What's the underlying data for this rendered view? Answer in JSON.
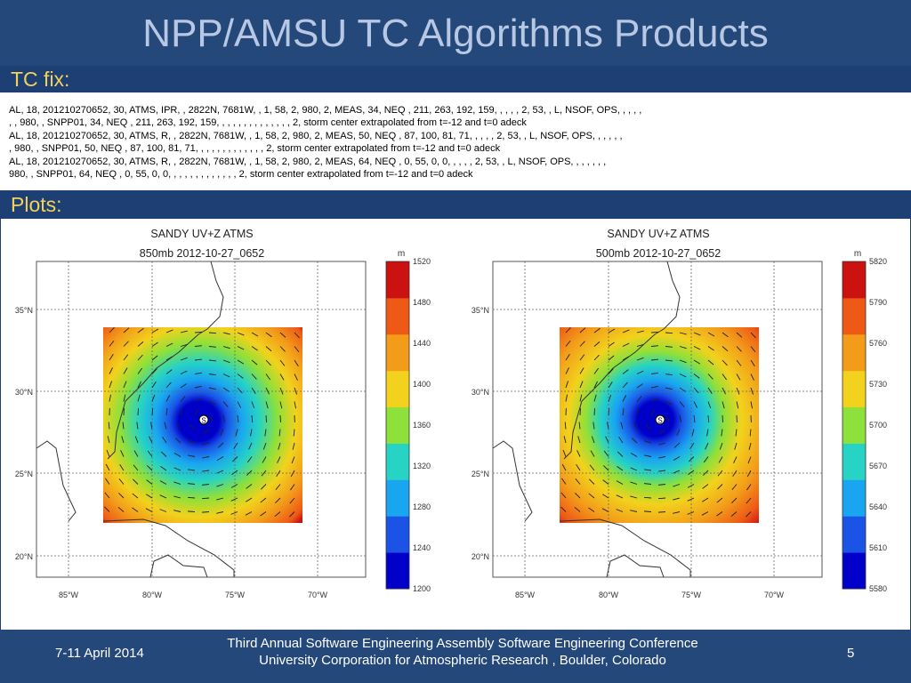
{
  "slide": {
    "title": "NPP/AMSU TC Algorithms Products",
    "tc_fix_label": "TC fix:",
    "plots_label": "Plots:",
    "tc_fix_lines": [
      "AL, 18, 201210270652,  30, ATMS,        IPR,  , 2822N,  7681W,      , 1,  58, 2,  980, 2, MEAS,  34, NEQ ,  211,  263,  192,  159,  ,  ,  ,  , 2,  53,    , L,  NSOF, OPS,  ,    ,        ,   ,",
      ",     ,  980,     , SNPP01,  34, NEQ ,  211,  263,  192,  159,     ,     ,      ,      ,   ,  ,  ,  ,  ,  ,  ,  ,  , 2, storm center extrapolated from t=-12 and t=0 adeck",
      "AL, 18, 201210270652,  30, ATMS,         R,  , 2822N,  7681W,      , 1,  58, 2,  980, 2, MEAS,  50, NEQ ,   87,  100,   81,   71,  ,  ,  ,  , 2,  53,    , L,  NSOF, OPS,  ,    ,      ,   ,     ,",
      "  ,  980,     , SNPP01,  50, NEQ ,   87,  100,   81,   71,     ,     ,      ,   ,  ,  ,  ,  ,  ,  ,  ,  , 2, storm center extrapolated from t=-12 and t=0 adeck",
      "AL, 18, 201210270652,  30, ATMS,         R,  , 2822N,  7681W,      , 1,  58, 2,  980, 2, MEAS,  64, NEQ ,    0,   55,    0,    0,  ,  ,  ,  , 2,  53,    , L,  NSOF, OPS,  ,    ,       ,   ,     ,     ,",
      "980,     , SNPP01,  64, NEQ ,    0,   55,    0,    0,     ,     ,      ,   ,  ,  ,  ,  ,  ,  ,  ,  , 2, storm center extrapolated from t=-12 and t=0 adeck"
    ],
    "footer": {
      "date": "7-11 April 2014",
      "conference_line1": "Third Annual Software Engineering Assembly Software Engineering Conference",
      "conference_line2": "University Corporation for Atmospheric Research , Boulder, Colorado",
      "page_number": "5"
    },
    "colors": {
      "title_bar": "#24487a",
      "section_bar": "#1d3f73",
      "title_text": "#b8c8e4",
      "section_text": "#f2d25a"
    }
  },
  "plots": [
    {
      "title": "SANDY UV+Z ATMS",
      "subtitle": "850mb 2012-10-27_0652",
      "unit": "m",
      "colorbar_ticks": [
        "1520",
        "1480",
        "1440",
        "1400",
        "1360",
        "1320",
        "1280",
        "1240",
        "1200"
      ],
      "lat_ticks": [
        "35°N",
        "30°N",
        "25°N",
        "20°N"
      ],
      "lon_ticks": [
        "85°W",
        "80°W",
        "75°W",
        "70°W"
      ],
      "storm_symbol": "S"
    },
    {
      "title": "SANDY UV+Z ATMS",
      "subtitle": "500mb 2012-10-27_0652",
      "unit": "m",
      "colorbar_ticks": [
        "5820",
        "5790",
        "5760",
        "5730",
        "5700",
        "5670",
        "5640",
        "5610",
        "5580"
      ],
      "lat_ticks": [
        "35°N",
        "30°N",
        "25°N",
        "20°N"
      ],
      "lon_ticks": [
        "85°W",
        "80°W",
        "75°W",
        "70°W"
      ],
      "storm_symbol": "S"
    }
  ],
  "colorbar_colors": [
    "#0000c8",
    "#1a53e6",
    "#1aa5f0",
    "#27d3c4",
    "#8ee03a",
    "#f2d21c",
    "#f39c1a",
    "#ee5a16",
    "#cc1111"
  ]
}
